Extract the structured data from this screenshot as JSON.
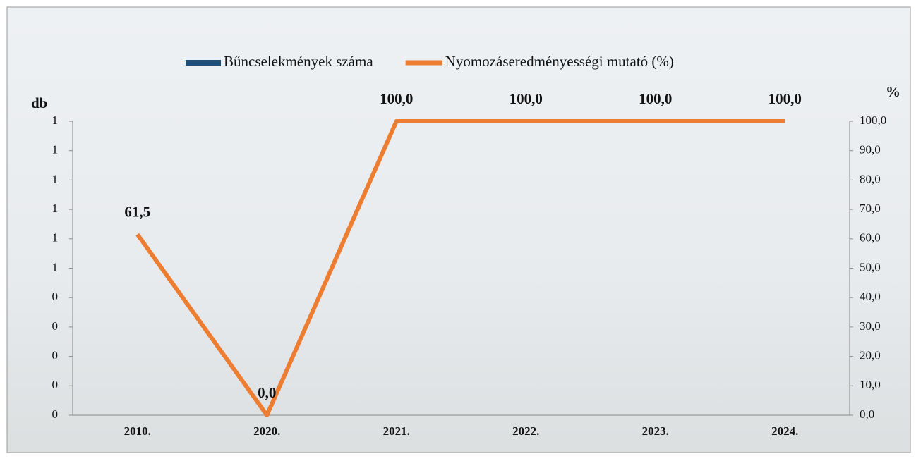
{
  "chart_data": {
    "type": "bar-line",
    "categories": [
      "2010.",
      "2020.",
      "2021.",
      "2022.",
      "2023.",
      "2024."
    ],
    "series": [
      {
        "name": "Bűncselekmények száma",
        "type": "bar",
        "color": "#1f4e79",
        "values": [
          0,
          0,
          0,
          0,
          0,
          0
        ]
      },
      {
        "name": "Nyomozáseredményességi mutató (%)",
        "type": "line",
        "axis": "y2",
        "color": "#ed7d31",
        "values": [
          61.5,
          0,
          100,
          100,
          100,
          100
        ],
        "value_labels": [
          "61,5",
          "0,0",
          "100,0",
          "100,0",
          "100,0",
          "100,0"
        ]
      }
    ],
    "ylabel": "db",
    "y2label": "%",
    "ylim": [
      0,
      1
    ],
    "yticks": [
      {
        "value": 0,
        "label": "0"
      },
      {
        "value": 0.1,
        "label": "0"
      },
      {
        "value": 0.2,
        "label": "0"
      },
      {
        "value": 0.3,
        "label": "0"
      },
      {
        "value": 0.4,
        "label": "0"
      },
      {
        "value": 0.5,
        "label": "1"
      },
      {
        "value": 0.6,
        "label": "1"
      },
      {
        "value": 0.7,
        "label": "1"
      },
      {
        "value": 0.8,
        "label": "1"
      },
      {
        "value": 0.9,
        "label": "1"
      },
      {
        "value": 1,
        "label": "1"
      }
    ],
    "y2lim": [
      0,
      100
    ],
    "y2ticks": [
      {
        "value": 0,
        "label": "0,0"
      },
      {
        "value": 10,
        "label": "10,0"
      },
      {
        "value": 20,
        "label": "20,0"
      },
      {
        "value": 30,
        "label": "30,0"
      },
      {
        "value": 40,
        "label": "40,0"
      },
      {
        "value": 50,
        "label": "50,0"
      },
      {
        "value": 60,
        "label": "60,0"
      },
      {
        "value": 70,
        "label": "70,0"
      },
      {
        "value": 80,
        "label": "80,0"
      },
      {
        "value": 90,
        "label": "90,0"
      },
      {
        "value": 100,
        "label": "100,0"
      }
    ],
    "grid": false
  }
}
